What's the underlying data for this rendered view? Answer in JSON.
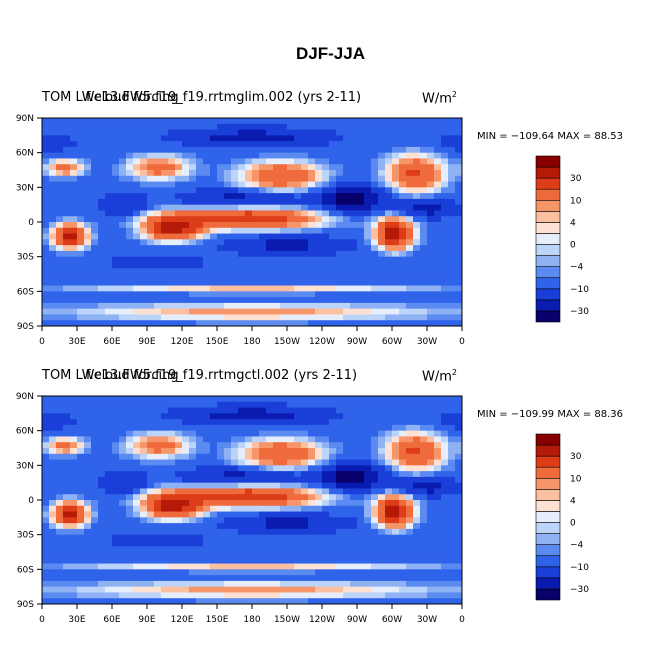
{
  "title": "DJF-JJA",
  "panels": [
    {
      "left_title": "TOM  LWcloud forcing",
      "center_title": "f.e13.FW5.f19_f19.rrtmglim.002 (yrs 2-11)",
      "units": "W/m",
      "units_exp": "2",
      "minmax": "MIN = −109.64  MAX =   88.53"
    },
    {
      "left_title": "TOM  LWcloud forcing",
      "center_title": "f.e13.FW5.f19_f19.rrtmgctl.002 (yrs 2-11)",
      "units": "W/m",
      "units_exp": "2",
      "minmax": "MIN = −109.99  MAX =   88.36"
    }
  ],
  "chart_data": {
    "type": "heatmap",
    "x_tick_labels": [
      "0",
      "30E",
      "60E",
      "90E",
      "120E",
      "150E",
      "180",
      "150W",
      "120W",
      "90W",
      "60W",
      "30W",
      "0"
    ],
    "y_tick_labels": [
      "90N",
      "60N",
      "30N",
      "0",
      "30S",
      "60S",
      "90S"
    ],
    "xlim": [
      0,
      360
    ],
    "ylim": [
      -90,
      90
    ],
    "colorbar": {
      "levels": [
        -40,
        -30,
        -20,
        -10,
        -6,
        -4,
        -2,
        0,
        2,
        4,
        6,
        10,
        20,
        30,
        40
      ],
      "labels": [
        {
          "value": 30,
          "text": "30"
        },
        {
          "value": 10,
          "text": "10"
        },
        {
          "value": 4,
          "text": "4"
        },
        {
          "value": 0,
          "text": "0"
        },
        {
          "value": -4,
          "text": "−4"
        },
        {
          "value": -10,
          "text": "−10"
        },
        {
          "value": -30,
          "text": "−30"
        }
      ],
      "colors": [
        "#08006b",
        "#0a1cb0",
        "#1a3fd9",
        "#2f64ea",
        "#5b8bf0",
        "#8fb2f5",
        "#bcd3fa",
        "#e6eefc",
        "#fde1d2",
        "#fbc0a0",
        "#f7956a",
        "#ef6b3c",
        "#dc3c18",
        "#b51a08",
        "#870000"
      ]
    },
    "field_regions": [
      {
        "lon": 175,
        "lat": 3,
        "rx": 70,
        "ry": 10,
        "value": 30
      },
      {
        "lon": 112,
        "lat": -5,
        "rx": 28,
        "ry": 12,
        "value": 34
      },
      {
        "lon": 302,
        "lat": -10,
        "rx": 18,
        "ry": 15,
        "value": 38
      },
      {
        "lon": 24,
        "lat": -12,
        "rx": 17,
        "ry": 12,
        "value": 32
      },
      {
        "lon": 205,
        "lat": 40,
        "rx": 40,
        "ry": 14,
        "value": 20
      },
      {
        "lon": 320,
        "lat": 42,
        "rx": 28,
        "ry": 18,
        "value": 22
      },
      {
        "lon": 100,
        "lat": 47,
        "rx": 30,
        "ry": 12,
        "value": 14
      },
      {
        "lon": 20,
        "lat": 47,
        "rx": 18,
        "ry": 8,
        "value": 14
      },
      {
        "lon": 180,
        "lat": -78,
        "rx": 180,
        "ry": 8,
        "value": 8
      },
      {
        "lon": 180,
        "lat": -58,
        "rx": 180,
        "ry": 4,
        "value": 5
      },
      {
        "lon": 180,
        "lat": 73,
        "rx": 60,
        "ry": 8,
        "value": -28
      },
      {
        "lon": 0,
        "lat": 68,
        "rx": 40,
        "ry": 10,
        "value": -12
      },
      {
        "lon": 265,
        "lat": 20,
        "rx": 30,
        "ry": 12,
        "value": -38
      },
      {
        "lon": 170,
        "lat": 20,
        "rx": 50,
        "ry": 8,
        "value": -24
      },
      {
        "lon": 210,
        "lat": -20,
        "rx": 50,
        "ry": 8,
        "value": -24
      },
      {
        "lon": 70,
        "lat": 15,
        "rx": 20,
        "ry": 10,
        "value": -20
      },
      {
        "lon": 330,
        "lat": 12,
        "rx": 25,
        "ry": 8,
        "value": -28
      },
      {
        "lon": 100,
        "lat": -35,
        "rx": 60,
        "ry": 8,
        "value": -12
      },
      {
        "lon": 250,
        "lat": -38,
        "rx": 60,
        "ry": 8,
        "value": -10
      }
    ],
    "field_background": -8,
    "grid": false,
    "legend": "right"
  }
}
